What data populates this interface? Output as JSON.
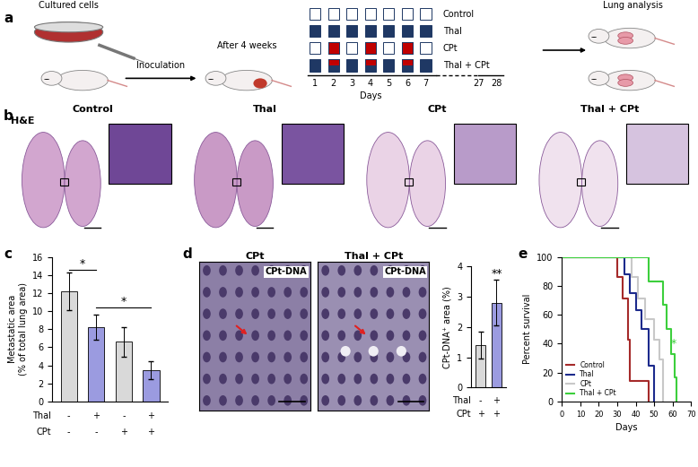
{
  "panel_labels": [
    "a",
    "b",
    "c",
    "d",
    "e"
  ],
  "schematic": {
    "steps": [
      "Cultured cells",
      "Inoculation",
      "After 4 weeks",
      "Lung analysis"
    ],
    "days_axis": {
      "label": "Days",
      "ticks": [
        1,
        2,
        3,
        4,
        5,
        6,
        7,
        27,
        28
      ]
    },
    "box_days": [
      1,
      2,
      3,
      4,
      5,
      6,
      7
    ],
    "groups": [
      {
        "name": "Control",
        "thal_days": [],
        "cpt_days": []
      },
      {
        "name": "Thal",
        "thal_days": [
          1,
          2,
          3,
          4,
          5,
          6,
          7
        ],
        "cpt_days": []
      },
      {
        "name": "CPt",
        "thal_days": [],
        "cpt_days": [
          2,
          4,
          6
        ]
      },
      {
        "name": "Thal + CPt",
        "thal_days": [
          1,
          2,
          3,
          4,
          5,
          6,
          7
        ],
        "cpt_days": [
          2,
          4,
          6
        ]
      }
    ]
  },
  "histology": {
    "stain": "H&E",
    "titles": [
      "Control",
      "Thal",
      "CPt",
      "Thal + CPt"
    ]
  },
  "staining": {
    "titles": [
      "CPt",
      "Thal + CPt"
    ],
    "stain_label": "CPt-DNA"
  },
  "chart_data": [
    {
      "type": "bar",
      "ylabel": "Metastatic area\n(% of total lung area)",
      "categories": [
        null,
        null,
        null,
        null
      ],
      "values": [
        12.2,
        8.2,
        6.6,
        3.5
      ],
      "errors": [
        2.1,
        1.4,
        1.6,
        1.0
      ],
      "colors": [
        "#d9d9d9",
        "#9b9be0",
        "#d9d9d9",
        "#9b9be0"
      ],
      "ylim": [
        0,
        16
      ],
      "yticks": [
        0,
        2,
        4,
        6,
        8,
        10,
        12,
        14,
        16
      ],
      "rows": [
        {
          "label": "Thal",
          "values": [
            "-",
            "+",
            "-",
            "+"
          ]
        },
        {
          "label": "CPt",
          "values": [
            "-",
            "-",
            "+",
            "+"
          ]
        }
      ],
      "brackets": [
        {
          "from": 0,
          "to": 1,
          "y": 14.6,
          "label": "*"
        },
        {
          "from": 1,
          "to": 3,
          "y": 10.4,
          "label": "*"
        }
      ]
    },
    {
      "type": "bar",
      "ylabel": "CPt-DNA⁺ area (%)",
      "categories": [
        null,
        null
      ],
      "values": [
        1.4,
        2.8
      ],
      "errors": [
        0.45,
        0.75
      ],
      "colors": [
        "#d9d9d9",
        "#9b9be0"
      ],
      "ylim": [
        0,
        4
      ],
      "yticks": [
        0,
        1,
        2,
        3,
        4
      ],
      "rows": [
        {
          "label": "Thal",
          "values": [
            "-",
            "+"
          ]
        },
        {
          "label": "CPt",
          "values": [
            "+",
            "+"
          ]
        }
      ],
      "annotations": [
        {
          "index": 1,
          "label": "**"
        }
      ]
    },
    {
      "type": "line",
      "line_style": "steps",
      "xlabel": "Days",
      "ylabel": "Percent survival",
      "xlim": [
        0,
        70
      ],
      "xticks": [
        0,
        10,
        20,
        30,
        40,
        50,
        60,
        70
      ],
      "ylim": [
        0,
        100
      ],
      "yticks": [
        0,
        20,
        40,
        60,
        80,
        100
      ],
      "legend": "lower left",
      "series": [
        {
          "name": "Control",
          "color": "#a52a2a",
          "x": [
            0,
            30,
            33,
            36,
            37,
            47
          ],
          "values": [
            100,
            86,
            71,
            43,
            14,
            0
          ]
        },
        {
          "name": "Thal",
          "color": "#1c2a8c",
          "x": [
            0,
            34,
            37,
            40,
            43,
            47,
            50
          ],
          "values": [
            100,
            88,
            75,
            63,
            50,
            25,
            0
          ]
        },
        {
          "name": "CPt",
          "color": "#c8c8c8",
          "x": [
            0,
            38,
            41,
            45,
            50,
            53,
            55
          ],
          "values": [
            100,
            86,
            71,
            57,
            43,
            29,
            0
          ]
        },
        {
          "name": "Thal + CPt",
          "color": "#3ccf3c",
          "x": [
            0,
            47,
            55,
            57,
            59,
            61,
            62
          ],
          "values": [
            100,
            83,
            67,
            50,
            33,
            17,
            0
          ]
        }
      ],
      "annotations": [
        {
          "x": 59,
          "y": 40,
          "label": "*",
          "color": "#3ccf3c"
        }
      ]
    }
  ]
}
